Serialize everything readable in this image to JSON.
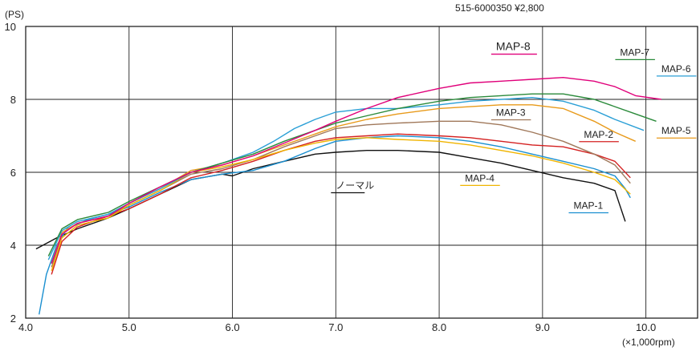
{
  "chart_data": {
    "type": "line",
    "header_text": "515-6000350 ¥2,800",
    "y_unit": "(PS)",
    "x_unit": "(×1,000rpm)",
    "xlim": [
      4.0,
      10.5
    ],
    "ylim": [
      2,
      10
    ],
    "x_ticks": [
      "4.0",
      "5.0",
      "6.0",
      "7.0",
      "8.0",
      "9.0",
      "10.0"
    ],
    "y_ticks": [
      "2",
      "4",
      "6",
      "8",
      "10"
    ],
    "grid": true,
    "series": [
      {
        "name": "ノーマル",
        "color": "#111111",
        "label_at": [
          7.0,
          5.55
        ],
        "points": [
          [
            4.1,
            3.9
          ],
          [
            4.3,
            4.2
          ],
          [
            4.5,
            4.45
          ],
          [
            4.8,
            4.75
          ],
          [
            5.0,
            5.0
          ],
          [
            5.3,
            5.4
          ],
          [
            5.6,
            5.8
          ],
          [
            5.9,
            5.95
          ],
          [
            6.0,
            5.9
          ],
          [
            6.2,
            6.1
          ],
          [
            6.5,
            6.3
          ],
          [
            6.8,
            6.5
          ],
          [
            7.0,
            6.55
          ],
          [
            7.3,
            6.6
          ],
          [
            7.6,
            6.6
          ],
          [
            8.0,
            6.55
          ],
          [
            8.3,
            6.4
          ],
          [
            8.6,
            6.25
          ],
          [
            8.9,
            6.05
          ],
          [
            9.2,
            5.85
          ],
          [
            9.5,
            5.7
          ],
          [
            9.7,
            5.5
          ],
          [
            9.8,
            4.65
          ]
        ]
      },
      {
        "name": "MAP-1",
        "color": "#1a8fd0",
        "label_at": [
          9.3,
          5.0
        ],
        "points": [
          [
            4.13,
            2.1
          ],
          [
            4.2,
            3.2
          ],
          [
            4.3,
            4.0
          ],
          [
            4.4,
            4.45
          ],
          [
            4.6,
            4.7
          ],
          [
            4.8,
            4.85
          ],
          [
            5.0,
            5.05
          ],
          [
            5.3,
            5.45
          ],
          [
            5.6,
            5.8
          ],
          [
            5.9,
            5.95
          ],
          [
            6.2,
            6.05
          ],
          [
            6.5,
            6.3
          ],
          [
            6.8,
            6.65
          ],
          [
            7.0,
            6.85
          ],
          [
            7.3,
            6.95
          ],
          [
            7.6,
            7.0
          ],
          [
            8.0,
            6.95
          ],
          [
            8.3,
            6.85
          ],
          [
            8.6,
            6.7
          ],
          [
            8.9,
            6.5
          ],
          [
            9.2,
            6.3
          ],
          [
            9.5,
            6.1
          ],
          [
            9.7,
            5.9
          ],
          [
            9.8,
            5.55
          ],
          [
            9.85,
            5.3
          ]
        ]
      },
      {
        "name": "MAP-2",
        "color": "#d42020",
        "label_at": [
          9.4,
          6.95
        ],
        "points": [
          [
            4.25,
            3.2
          ],
          [
            4.35,
            4.1
          ],
          [
            4.5,
            4.5
          ],
          [
            4.7,
            4.7
          ],
          [
            5.0,
            5.0
          ],
          [
            5.3,
            5.4
          ],
          [
            5.6,
            5.85
          ],
          [
            5.9,
            6.05
          ],
          [
            6.2,
            6.3
          ],
          [
            6.5,
            6.6
          ],
          [
            6.8,
            6.85
          ],
          [
            7.0,
            6.95
          ],
          [
            7.3,
            7.0
          ],
          [
            7.6,
            7.05
          ],
          [
            8.0,
            7.0
          ],
          [
            8.3,
            6.95
          ],
          [
            8.6,
            6.85
          ],
          [
            8.9,
            6.75
          ],
          [
            9.2,
            6.7
          ],
          [
            9.5,
            6.5
          ],
          [
            9.7,
            6.3
          ],
          [
            9.85,
            5.85
          ]
        ]
      },
      {
        "name": "MAP-3",
        "color": "#a0785a",
        "label_at": [
          8.55,
          7.55
        ],
        "points": [
          [
            4.25,
            3.4
          ],
          [
            4.35,
            4.3
          ],
          [
            4.5,
            4.6
          ],
          [
            4.8,
            4.8
          ],
          [
            5.0,
            5.1
          ],
          [
            5.3,
            5.5
          ],
          [
            5.6,
            5.95
          ],
          [
            5.9,
            6.1
          ],
          [
            6.2,
            6.35
          ],
          [
            6.5,
            6.7
          ],
          [
            6.8,
            7.0
          ],
          [
            7.0,
            7.2
          ],
          [
            7.3,
            7.3
          ],
          [
            7.6,
            7.35
          ],
          [
            8.0,
            7.4
          ],
          [
            8.3,
            7.4
          ],
          [
            8.6,
            7.3
          ],
          [
            8.9,
            7.1
          ],
          [
            9.2,
            6.85
          ],
          [
            9.5,
            6.5
          ],
          [
            9.7,
            6.2
          ],
          [
            9.85,
            5.7
          ]
        ]
      },
      {
        "name": "MAP-4",
        "color": "#f0b400",
        "label_at": [
          8.25,
          5.75
        ],
        "points": [
          [
            4.25,
            3.3
          ],
          [
            4.35,
            4.2
          ],
          [
            4.5,
            4.55
          ],
          [
            4.8,
            4.75
          ],
          [
            5.0,
            5.1
          ],
          [
            5.3,
            5.5
          ],
          [
            5.6,
            6.0
          ],
          [
            5.9,
            6.15
          ],
          [
            6.2,
            6.35
          ],
          [
            6.5,
            6.6
          ],
          [
            6.8,
            6.8
          ],
          [
            7.0,
            6.9
          ],
          [
            7.3,
            6.95
          ],
          [
            7.6,
            6.9
          ],
          [
            8.0,
            6.85
          ],
          [
            8.3,
            6.75
          ],
          [
            8.6,
            6.6
          ],
          [
            8.9,
            6.45
          ],
          [
            9.2,
            6.25
          ],
          [
            9.5,
            6.0
          ],
          [
            9.7,
            5.8
          ],
          [
            9.85,
            5.4
          ]
        ]
      },
      {
        "name": "MAP-5",
        "color": "#e89a1a",
        "label_at": [
          10.15,
          7.05
        ],
        "points": [
          [
            4.25,
            3.5
          ],
          [
            4.35,
            4.35
          ],
          [
            4.5,
            4.6
          ],
          [
            4.8,
            4.8
          ],
          [
            5.0,
            5.15
          ],
          [
            5.3,
            5.55
          ],
          [
            5.6,
            6.05
          ],
          [
            5.9,
            6.2
          ],
          [
            6.2,
            6.45
          ],
          [
            6.5,
            6.75
          ],
          [
            6.8,
            7.05
          ],
          [
            7.0,
            7.25
          ],
          [
            7.3,
            7.45
          ],
          [
            7.6,
            7.6
          ],
          [
            8.0,
            7.75
          ],
          [
            8.3,
            7.8
          ],
          [
            8.6,
            7.85
          ],
          [
            8.9,
            7.85
          ],
          [
            9.2,
            7.75
          ],
          [
            9.5,
            7.4
          ],
          [
            9.7,
            7.1
          ],
          [
            9.9,
            6.85
          ]
        ]
      },
      {
        "name": "MAP-6",
        "color": "#2a9fd6",
        "label_at": [
          10.15,
          8.75
        ],
        "points": [
          [
            4.22,
            3.6
          ],
          [
            4.35,
            4.4
          ],
          [
            4.5,
            4.65
          ],
          [
            4.8,
            4.85
          ],
          [
            5.0,
            5.15
          ],
          [
            5.3,
            5.55
          ],
          [
            5.6,
            6.0
          ],
          [
            5.9,
            6.25
          ],
          [
            6.2,
            6.55
          ],
          [
            6.4,
            6.85
          ],
          [
            6.6,
            7.2
          ],
          [
            6.8,
            7.45
          ],
          [
            7.0,
            7.65
          ],
          [
            7.3,
            7.75
          ],
          [
            7.6,
            7.75
          ],
          [
            8.0,
            7.85
          ],
          [
            8.3,
            7.95
          ],
          [
            8.6,
            8.0
          ],
          [
            8.9,
            8.05
          ],
          [
            9.2,
            7.95
          ],
          [
            9.5,
            7.7
          ],
          [
            9.7,
            7.45
          ],
          [
            9.98,
            7.15
          ]
        ]
      },
      {
        "name": "MAP-7",
        "color": "#2a8a3a",
        "label_at": [
          9.75,
          9.2
        ],
        "points": [
          [
            4.22,
            3.7
          ],
          [
            4.35,
            4.45
          ],
          [
            4.5,
            4.7
          ],
          [
            4.8,
            4.9
          ],
          [
            5.0,
            5.2
          ],
          [
            5.3,
            5.6
          ],
          [
            5.6,
            6.0
          ],
          [
            5.9,
            6.25
          ],
          [
            6.2,
            6.5
          ],
          [
            6.5,
            6.85
          ],
          [
            6.8,
            7.15
          ],
          [
            7.0,
            7.35
          ],
          [
            7.3,
            7.55
          ],
          [
            7.6,
            7.75
          ],
          [
            8.0,
            7.95
          ],
          [
            8.3,
            8.05
          ],
          [
            8.6,
            8.1
          ],
          [
            8.9,
            8.15
          ],
          [
            9.2,
            8.15
          ],
          [
            9.5,
            8.0
          ],
          [
            9.7,
            7.8
          ],
          [
            9.9,
            7.6
          ],
          [
            10.1,
            7.4
          ]
        ]
      },
      {
        "name": "MAP-8",
        "color": "#e0007a",
        "label_at": [
          8.55,
          9.35
        ],
        "highlight": true,
        "points": [
          [
            4.25,
            3.5
          ],
          [
            4.35,
            4.3
          ],
          [
            4.5,
            4.6
          ],
          [
            4.8,
            4.8
          ],
          [
            5.0,
            5.15
          ],
          [
            5.3,
            5.6
          ],
          [
            5.6,
            6.0
          ],
          [
            5.9,
            6.2
          ],
          [
            6.2,
            6.45
          ],
          [
            6.5,
            6.8
          ],
          [
            6.8,
            7.15
          ],
          [
            7.0,
            7.4
          ],
          [
            7.3,
            7.75
          ],
          [
            7.6,
            8.05
          ],
          [
            8.0,
            8.3
          ],
          [
            8.3,
            8.45
          ],
          [
            8.6,
            8.5
          ],
          [
            8.9,
            8.55
          ],
          [
            9.2,
            8.6
          ],
          [
            9.5,
            8.5
          ],
          [
            9.7,
            8.35
          ],
          [
            9.9,
            8.1
          ],
          [
            10.15,
            8.0
          ]
        ]
      }
    ]
  }
}
